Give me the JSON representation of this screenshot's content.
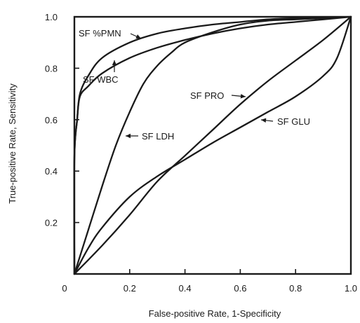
{
  "chart_data": {
    "type": "line",
    "title": "",
    "xlabel": "False-positive Rate, 1-Specificity",
    "ylabel": "True-positive Rate, Sensitivity",
    "xlim": [
      0,
      1
    ],
    "ylim": [
      0,
      1
    ],
    "grid": false,
    "x_ticks": [
      {
        "value": 0,
        "label": "0"
      },
      {
        "value": 0.2,
        "label": "0.2"
      },
      {
        "value": 0.4,
        "label": "0.4"
      },
      {
        "value": 0.6,
        "label": "0.6"
      },
      {
        "value": 0.8,
        "label": "0.8"
      },
      {
        "value": 1.0,
        "label": "1.0"
      }
    ],
    "y_ticks": [
      {
        "value": 0.2,
        "label": "0.2"
      },
      {
        "value": 0.4,
        "label": "0.4"
      },
      {
        "value": 0.6,
        "label": "0.6"
      },
      {
        "value": 0.8,
        "label": "0.8"
      },
      {
        "value": 1.0,
        "label": "1.0"
      }
    ],
    "series": [
      {
        "name": "SF %PMN",
        "label": "SF %PMN",
        "x": [
          0.0,
          0.0,
          0.01,
          0.02,
          0.05,
          0.1,
          0.2,
          0.3,
          0.4,
          0.5,
          0.6,
          0.7,
          0.8,
          0.9,
          1.0
        ],
        "y": [
          0.0,
          0.45,
          0.6,
          0.7,
          0.77,
          0.84,
          0.9,
          0.935,
          0.955,
          0.97,
          0.98,
          0.99,
          0.995,
          0.998,
          1.0
        ]
      },
      {
        "name": "SF WBC",
        "label": "SF WBC",
        "x": [
          0.0,
          0.0,
          0.01,
          0.02,
          0.05,
          0.1,
          0.2,
          0.3,
          0.4,
          0.5,
          0.6,
          0.7,
          0.8,
          0.9,
          1.0
        ],
        "y": [
          0.0,
          0.45,
          0.6,
          0.69,
          0.73,
          0.78,
          0.84,
          0.88,
          0.91,
          0.935,
          0.955,
          0.97,
          0.98,
          0.99,
          1.0
        ]
      },
      {
        "name": "SF LDH",
        "label": "SF LDH",
        "x": [
          0.0,
          0.05,
          0.1,
          0.15,
          0.2,
          0.25,
          0.3,
          0.35,
          0.4,
          0.5,
          0.6,
          0.7,
          0.8,
          0.9,
          1.0
        ],
        "y": [
          0.0,
          0.17,
          0.34,
          0.5,
          0.63,
          0.74,
          0.81,
          0.86,
          0.9,
          0.94,
          0.97,
          0.985,
          0.99,
          0.995,
          1.0
        ]
      },
      {
        "name": "SF PRO",
        "label": "SF PRO",
        "x": [
          0.0,
          0.1,
          0.2,
          0.3,
          0.4,
          0.5,
          0.6,
          0.7,
          0.8,
          0.9,
          1.0
        ],
        "y": [
          0.0,
          0.11,
          0.23,
          0.36,
          0.46,
          0.56,
          0.66,
          0.75,
          0.83,
          0.91,
          1.0
        ]
      },
      {
        "name": "SF GLU",
        "label": "SF GLU",
        "x": [
          0.0,
          0.05,
          0.1,
          0.2,
          0.3,
          0.4,
          0.5,
          0.6,
          0.7,
          0.8,
          0.9,
          0.95,
          1.0
        ],
        "y": [
          0.0,
          0.1,
          0.18,
          0.3,
          0.38,
          0.445,
          0.51,
          0.57,
          0.63,
          0.69,
          0.77,
          0.84,
          1.0
        ]
      }
    ]
  }
}
